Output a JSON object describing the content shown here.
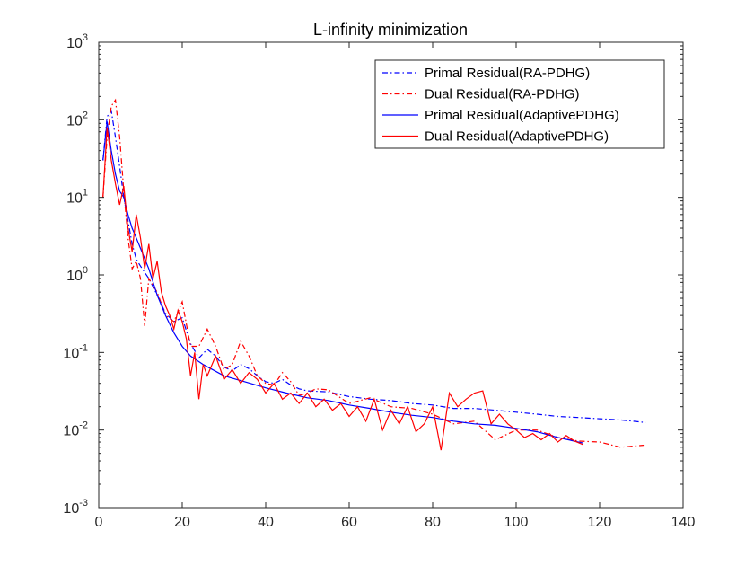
{
  "chart_data": {
    "type": "line",
    "title": "L-infinity minimization",
    "xlabel": "",
    "ylabel": "",
    "xlim": [
      0,
      140
    ],
    "ylim": [
      0.001,
      1000
    ],
    "yscale": "log",
    "x_ticks": [
      "0",
      "20",
      "40",
      "60",
      "80",
      "100",
      "120",
      "140"
    ],
    "y_ticks": [
      {
        "base": "10",
        "exp": "-3",
        "value": 0.001
      },
      {
        "base": "10",
        "exp": "-2",
        "value": 0.01
      },
      {
        "base": "10",
        "exp": "-1",
        "value": 0.1
      },
      {
        "base": "10",
        "exp": "0",
        "value": 1
      },
      {
        "base": "10",
        "exp": "1",
        "value": 10
      },
      {
        "base": "10",
        "exp": "2",
        "value": 100
      },
      {
        "base": "10",
        "exp": "3",
        "value": 1000
      }
    ],
    "grid": false,
    "legend_position": "top-right",
    "series": [
      {
        "name": "Primal Residual(RA-PDHG)",
        "color": "#0000ff",
        "dash": "dashdot",
        "x": [
          1,
          2,
          3,
          4,
          5,
          6,
          7,
          8,
          9,
          10,
          12,
          14,
          16,
          18,
          20,
          22,
          24,
          26,
          28,
          30,
          32,
          34,
          36,
          38,
          40,
          42,
          44,
          46,
          48,
          50,
          55,
          60,
          65,
          70,
          75,
          80,
          85,
          90,
          95,
          100,
          105,
          110,
          115,
          120,
          125,
          131
        ],
        "y": [
          30,
          110,
          130,
          60,
          25,
          10,
          5,
          2.5,
          1.6,
          1.3,
          0.9,
          0.55,
          0.32,
          0.25,
          0.28,
          0.13,
          0.085,
          0.11,
          0.09,
          0.065,
          0.058,
          0.07,
          0.062,
          0.05,
          0.042,
          0.04,
          0.045,
          0.038,
          0.034,
          0.032,
          0.031,
          0.027,
          0.025,
          0.024,
          0.022,
          0.021,
          0.019,
          0.019,
          0.018,
          0.017,
          0.016,
          0.015,
          0.0145,
          0.014,
          0.0135,
          0.0125
        ]
      },
      {
        "name": "Dual Residual(RA-PDHG)",
        "color": "#ff0000",
        "dash": "dashdot",
        "x": [
          1,
          2,
          3,
          4,
          5,
          6,
          7,
          8,
          9,
          10,
          11,
          12,
          14,
          16,
          18,
          20,
          22,
          24,
          26,
          28,
          30,
          32,
          34,
          36,
          38,
          40,
          42,
          44,
          46,
          48,
          50,
          52,
          55,
          60,
          65,
          70,
          75,
          80,
          85,
          90,
          95,
          100,
          105,
          110,
          115,
          120,
          125,
          131
        ],
        "y": [
          10,
          60,
          150,
          180,
          60,
          12,
          3,
          1.2,
          1.5,
          0.9,
          0.22,
          0.9,
          0.6,
          0.3,
          0.25,
          0.45,
          0.12,
          0.12,
          0.2,
          0.12,
          0.06,
          0.07,
          0.14,
          0.09,
          0.05,
          0.04,
          0.038,
          0.055,
          0.042,
          0.028,
          0.03,
          0.034,
          0.033,
          0.022,
          0.026,
          0.02,
          0.019,
          0.016,
          0.012,
          0.013,
          0.0075,
          0.01,
          0.01,
          0.008,
          0.0072,
          0.007,
          0.006,
          0.0064
        ]
      },
      {
        "name": "Primal Residual(AdaptivePDHG)",
        "color": "#0000ff",
        "dash": "solid",
        "x": [
          1,
          2,
          3,
          4,
          5,
          6,
          7,
          8,
          9,
          10,
          12,
          14,
          16,
          18,
          20,
          22,
          25,
          30,
          35,
          40,
          45,
          50,
          55,
          60,
          65,
          70,
          75,
          80,
          85,
          90,
          95,
          100,
          105,
          110,
          116
        ],
        "y": [
          30,
          95,
          40,
          20,
          12,
          10,
          6,
          4,
          3,
          2.2,
          1.2,
          0.55,
          0.3,
          0.18,
          0.12,
          0.09,
          0.07,
          0.05,
          0.042,
          0.035,
          0.03,
          0.026,
          0.024,
          0.021,
          0.019,
          0.017,
          0.0155,
          0.0145,
          0.013,
          0.012,
          0.0115,
          0.0105,
          0.0095,
          0.008,
          0.0068
        ]
      },
      {
        "name": "Dual Residual(AdaptivePDHG)",
        "color": "#ff0000",
        "dash": "solid",
        "x": [
          1,
          2,
          3,
          4,
          5,
          6,
          7,
          8,
          9,
          10,
          11,
          12,
          13,
          14,
          15,
          16,
          17,
          18,
          19,
          20,
          21,
          22,
          23,
          24,
          25,
          26,
          28,
          30,
          32,
          34,
          36,
          38,
          40,
          42,
          44,
          46,
          48,
          50,
          52,
          54,
          56,
          58,
          60,
          62,
          64,
          66,
          68,
          70,
          72,
          74,
          76,
          78,
          80,
          82,
          84,
          86,
          88,
          90,
          92,
          94,
          96,
          98,
          100,
          102,
          104,
          106,
          108,
          110,
          112,
          114,
          116
        ],
        "y": [
          10,
          80,
          30,
          15,
          8,
          14,
          4,
          2,
          6,
          3,
          1.2,
          2.5,
          0.9,
          1.5,
          0.6,
          0.4,
          0.3,
          0.2,
          0.35,
          0.25,
          0.15,
          0.05,
          0.1,
          0.025,
          0.07,
          0.05,
          0.09,
          0.045,
          0.06,
          0.04,
          0.055,
          0.045,
          0.03,
          0.04,
          0.025,
          0.03,
          0.022,
          0.03,
          0.02,
          0.025,
          0.018,
          0.022,
          0.015,
          0.02,
          0.013,
          0.025,
          0.01,
          0.018,
          0.012,
          0.02,
          0.0095,
          0.012,
          0.02,
          0.0055,
          0.03,
          0.02,
          0.025,
          0.03,
          0.032,
          0.012,
          0.016,
          0.012,
          0.01,
          0.008,
          0.009,
          0.0075,
          0.009,
          0.007,
          0.0085,
          0.0072,
          0.0065
        ]
      }
    ]
  }
}
